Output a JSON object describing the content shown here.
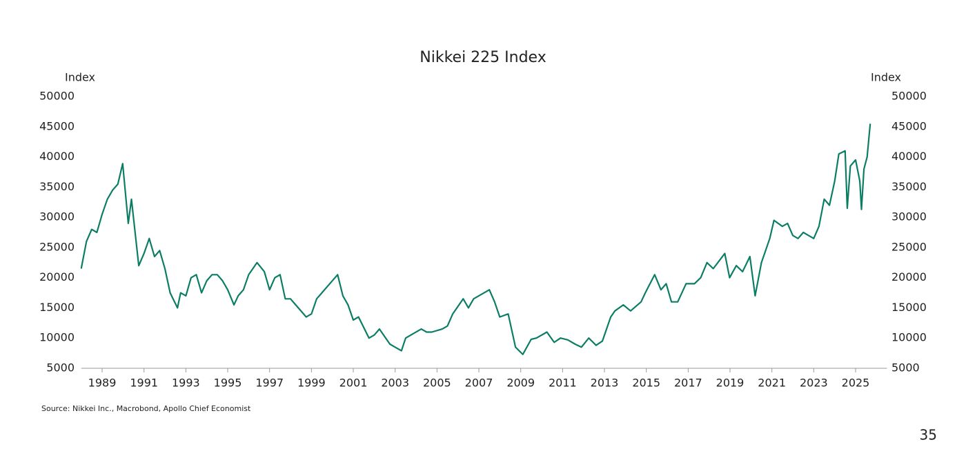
{
  "chart_data": {
    "type": "line",
    "title": "Nikkei 225 Index",
    "y_label": "Index",
    "y2_label": "Index",
    "source": "Source: Nikkei Inc., Macrobond, Apollo Chief Economist",
    "page_number": "35",
    "color": "#0b7d64",
    "xlim": [
      1988,
      2026.5
    ],
    "xticks": [
      1989,
      1991,
      1993,
      1995,
      1997,
      1999,
      2001,
      2003,
      2005,
      2007,
      2009,
      2011,
      2013,
      2015,
      2017,
      2019,
      2021,
      2023,
      2025
    ],
    "ylim": [
      5000,
      50000
    ],
    "yticks": [
      5000,
      10000,
      15000,
      20000,
      25000,
      30000,
      35000,
      40000,
      45000,
      50000
    ],
    "y2lim": [
      5000,
      50000
    ],
    "y2ticks": [
      5000,
      10000,
      15000,
      20000,
      25000,
      30000,
      35000,
      40000,
      45000,
      50000
    ],
    "x": [
      1988.0,
      1988.25,
      1988.5,
      1988.75,
      1989.0,
      1989.25,
      1989.5,
      1989.75,
      1989.98,
      1990.25,
      1990.4,
      1990.75,
      1991.0,
      1991.25,
      1991.5,
      1991.75,
      1992.0,
      1992.25,
      1992.6,
      1992.75,
      1993.0,
      1993.25,
      1993.5,
      1993.75,
      1994.0,
      1994.25,
      1994.5,
      1994.75,
      1995.0,
      1995.3,
      1995.5,
      1995.75,
      1996.0,
      1996.4,
      1996.75,
      1997.0,
      1997.25,
      1997.5,
      1997.75,
      1998.0,
      1998.25,
      1998.75,
      1999.0,
      1999.25,
      1999.5,
      1999.75,
      2000.25,
      2000.5,
      2000.75,
      2001.0,
      2001.25,
      2001.75,
      2002.0,
      2002.25,
      2002.75,
      2003.0,
      2003.3,
      2003.5,
      2003.75,
      2004.25,
      2004.5,
      2004.75,
      2005.25,
      2005.5,
      2005.75,
      2006.25,
      2006.5,
      2006.75,
      2007.25,
      2007.5,
      2007.75,
      2008.0,
      2008.4,
      2008.75,
      2009.1,
      2009.5,
      2009.75,
      2010.25,
      2010.6,
      2010.9,
      2011.25,
      2011.6,
      2011.9,
      2012.25,
      2012.6,
      2012.9,
      2013.3,
      2013.5,
      2013.9,
      2014.25,
      2014.75,
      2014.95,
      2015.4,
      2015.7,
      2015.95,
      2016.2,
      2016.5,
      2016.9,
      2017.3,
      2017.6,
      2017.9,
      2018.2,
      2018.75,
      2018.98,
      2019.3,
      2019.6,
      2019.95,
      2020.2,
      2020.5,
      2020.9,
      2021.1,
      2021.5,
      2021.75,
      2022.0,
      2022.25,
      2022.5,
      2022.75,
      2023.0,
      2023.25,
      2023.5,
      2023.75,
      2024.0,
      2024.2,
      2024.5,
      2024.6,
      2024.75,
      2025.0,
      2025.2,
      2025.28,
      2025.4,
      2025.55,
      2025.7
    ],
    "values": [
      21500,
      26000,
      28000,
      27500,
      30500,
      33000,
      34500,
      35500,
      38900,
      29000,
      33000,
      22000,
      24000,
      26500,
      23500,
      24500,
      21500,
      17500,
      15000,
      17500,
      17000,
      20000,
      20500,
      17500,
      19500,
      20500,
      20500,
      19500,
      18000,
      15500,
      17000,
      18000,
      20500,
      22500,
      21000,
      18000,
      20000,
      20500,
      16500,
      16500,
      15500,
      13500,
      14000,
      16500,
      17500,
      18500,
      20500,
      17000,
      15500,
      13000,
      13500,
      10000,
      10500,
      11500,
      9000,
      8500,
      7900,
      10000,
      10500,
      11500,
      11000,
      11000,
      11500,
      12000,
      14000,
      16500,
      15000,
      16500,
      17500,
      18000,
      16000,
      13500,
      14000,
      8500,
      7300,
      9800,
      10000,
      11000,
      9300,
      10000,
      9700,
      9000,
      8500,
      10000,
      8800,
      9500,
      13500,
      14500,
      15500,
      14500,
      16000,
      17500,
      20500,
      18000,
      19000,
      16000,
      16000,
      19000,
      19000,
      20000,
      22500,
      21500,
      24000,
      20000,
      22000,
      21000,
      23500,
      17000,
      22500,
      26500,
      29500,
      28500,
      29000,
      27000,
      26500,
      27500,
      27000,
      26500,
      28500,
      33000,
      32000,
      36000,
      40500,
      41000,
      31500,
      38500,
      39500,
      36000,
      31300,
      38000,
      40000,
      45500
    ]
  }
}
